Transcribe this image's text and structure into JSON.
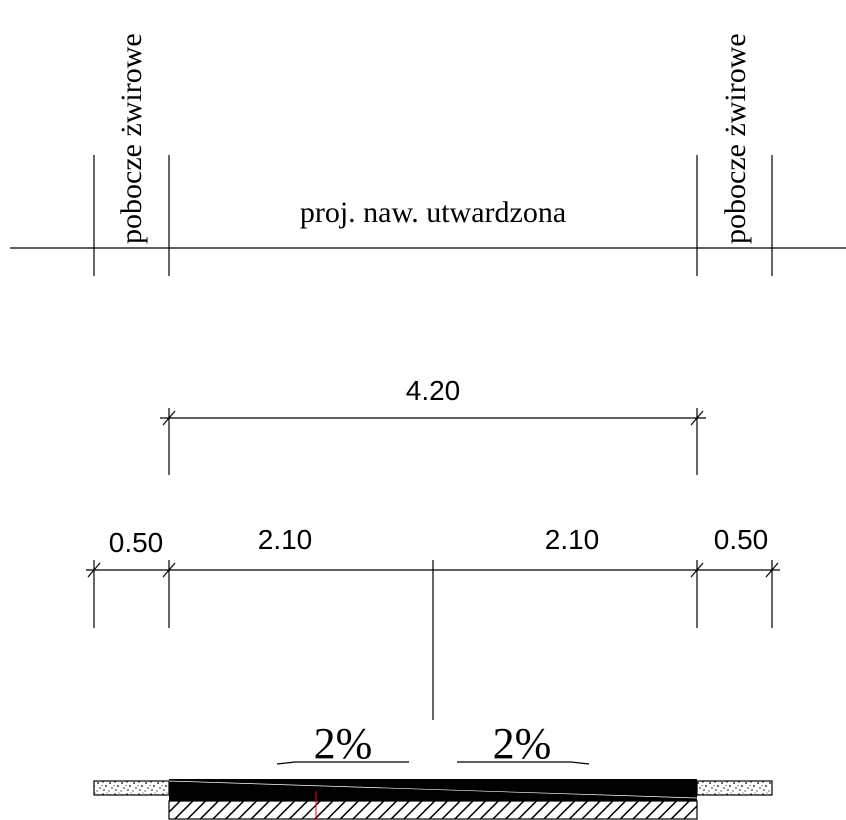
{
  "labels": {
    "left_shoulder": "pobocze żwirowe",
    "carriageway": "proj. naw. utwardzona",
    "right_shoulder": "pobocze żwirowe"
  },
  "dimensions": {
    "total_width": "4.20",
    "left_shoulder": "0.50",
    "left_lane": "2.10",
    "right_lane": "2.10",
    "right_shoulder": "0.50"
  },
  "slopes": {
    "left": "2%",
    "right": "2%"
  },
  "colors": {
    "line": "#000000",
    "surface": "#000000",
    "axis_marker": "#ff0000"
  }
}
